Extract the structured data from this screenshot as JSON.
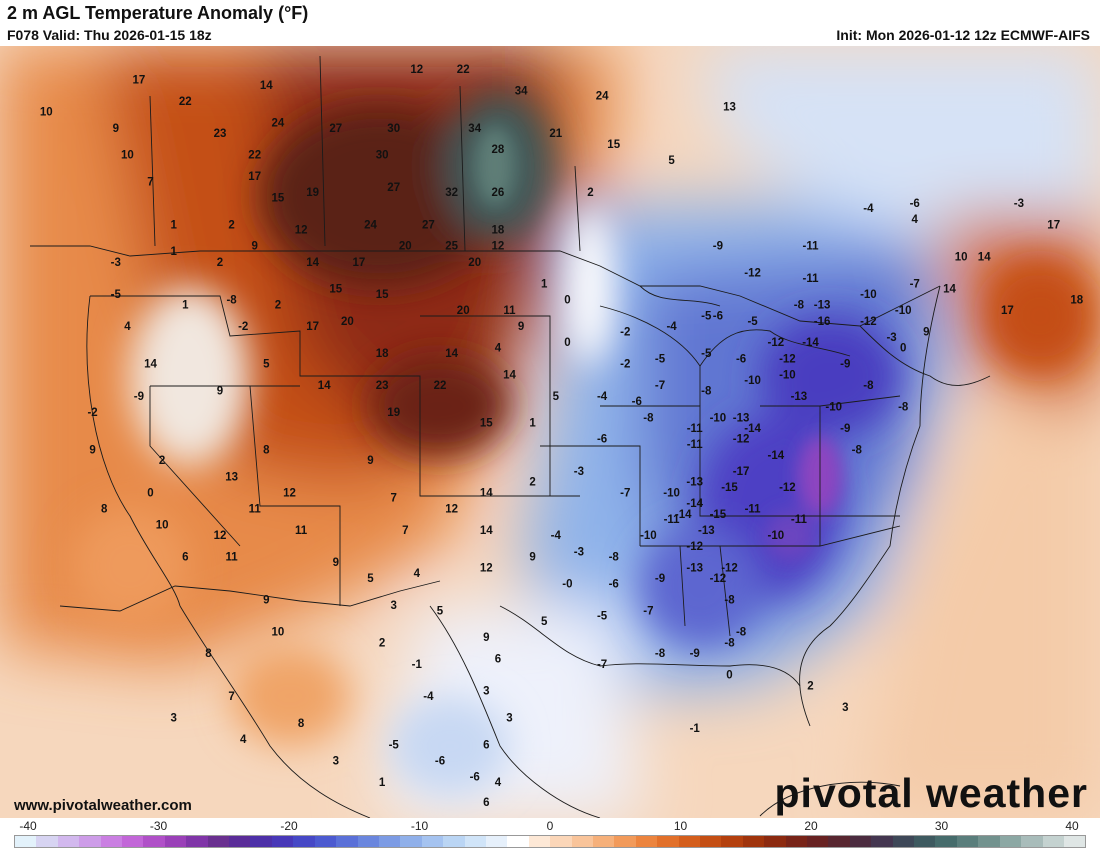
{
  "header": {
    "title": "2 m AGL Temperature Anomaly (°F)",
    "valid": "F078 Valid: Thu 2026-01-15 18z",
    "init": "Init: Mon 2026-01-12 12z ECMWF-AIFS"
  },
  "footer": {
    "site": "www.pivotalweather.com",
    "brand": "pivotal weather"
  },
  "colorbar": {
    "tick_labels": [
      "-40",
      "-30",
      "-20",
      "-10",
      "0",
      "10",
      "20",
      "30",
      "40"
    ],
    "colors": [
      "#e3f2fb",
      "#d7d4f2",
      "#d2b8ee",
      "#cd9ce8",
      "#ca7fe2",
      "#c266d8",
      "#b050c8",
      "#9a40b8",
      "#8035a8",
      "#6a3090",
      "#5a2c98",
      "#4d30a8",
      "#4838b8",
      "#4648c6",
      "#4c5ad0",
      "#5a70d8",
      "#6a86de",
      "#7c9be4",
      "#90b0ea",
      "#a5c3f0",
      "#bad5f4",
      "#d0e4f8",
      "#e6f0fb",
      "#ffffff",
      "#fde8d6",
      "#fbd6b8",
      "#f9c49a",
      "#f6b07a",
      "#f29a5a",
      "#ec843e",
      "#e2702a",
      "#d45e1c",
      "#c44e14",
      "#b4400e",
      "#a0340c",
      "#8c2a10",
      "#782418",
      "#682222",
      "#582630",
      "#4c2c40",
      "#443650",
      "#3e4858",
      "#3e5a60",
      "#466c6c",
      "#5a7e7c",
      "#72928e",
      "#8ca8a4",
      "#a8bcba",
      "#c4d2d0",
      "#dfe6e5"
    ]
  },
  "map_labels": [
    {
      "t": "17",
      "lon": -128,
      "lat": 56.5
    },
    {
      "t": "14",
      "lon": -117,
      "lat": 56
    },
    {
      "t": "12",
      "lon": -104,
      "lat": 57.5
    },
    {
      "t": "22",
      "lon": -100,
      "lat": 57.5
    },
    {
      "t": "34",
      "lon": -95,
      "lat": 55.5
    },
    {
      "t": "24",
      "lon": -88,
      "lat": 55
    },
    {
      "t": "13",
      "lon": -77,
      "lat": 54
    },
    {
      "t": "10",
      "lon": -136,
      "lat": 53.5
    },
    {
      "t": "22",
      "lon": -124,
      "lat": 54.5
    },
    {
      "t": "9",
      "lon": -130,
      "lat": 52
    },
    {
      "t": "23",
      "lon": -121,
      "lat": 51.5
    },
    {
      "t": "24",
      "lon": -116,
      "lat": 52.5
    },
    {
      "t": "27",
      "lon": -111,
      "lat": 52
    },
    {
      "t": "30",
      "lon": -106,
      "lat": 52
    },
    {
      "t": "34",
      "lon": -99,
      "lat": 52
    },
    {
      "t": "21",
      "lon": -92,
      "lat": 51.5
    },
    {
      "t": "15",
      "lon": -87,
      "lat": 50.5
    },
    {
      "t": "5",
      "lon": -82,
      "lat": 49
    },
    {
      "t": "10",
      "lon": -129,
      "lat": 49.5
    },
    {
      "t": "22",
      "lon": -118,
      "lat": 49.5
    },
    {
      "t": "30",
      "lon": -107,
      "lat": 49.5
    },
    {
      "t": "28",
      "lon": -97,
      "lat": 50
    },
    {
      "t": "7",
      "lon": -127,
      "lat": 47
    },
    {
      "t": "17",
      "lon": -118,
      "lat": 47.5
    },
    {
      "t": "15",
      "lon": -116,
      "lat": 45.5
    },
    {
      "t": "19",
      "lon": -113,
      "lat": 46
    },
    {
      "t": "27",
      "lon": -106,
      "lat": 46.5
    },
    {
      "t": "32",
      "lon": -101,
      "lat": 46
    },
    {
      "t": "26",
      "lon": -97,
      "lat": 46
    },
    {
      "t": "2",
      "lon": -89,
      "lat": 46
    },
    {
      "t": "24",
      "lon": -108,
      "lat": 43
    },
    {
      "t": "27",
      "lon": -103,
      "lat": 43
    },
    {
      "t": "18",
      "lon": -97,
      "lat": 42.5
    },
    {
      "t": "12",
      "lon": -114,
      "lat": 42.5
    },
    {
      "t": "2",
      "lon": -120,
      "lat": 43
    },
    {
      "t": "1",
      "lon": -125,
      "lat": 43
    },
    {
      "t": "20",
      "lon": -105,
      "lat": 41
    },
    {
      "t": "25",
      "lon": -101,
      "lat": 41
    },
    {
      "t": "12",
      "lon": -97,
      "lat": 41
    },
    {
      "t": "9",
      "lon": -118,
      "lat": 41
    },
    {
      "t": "14",
      "lon": -113,
      "lat": 39.5
    },
    {
      "t": "17",
      "lon": -109,
      "lat": 39.5
    },
    {
      "t": "20",
      "lon": -99,
      "lat": 39.5
    },
    {
      "t": "2",
      "lon": -121,
      "lat": 39.5
    },
    {
      "t": "1",
      "lon": -125,
      "lat": 40.5
    },
    {
      "t": "-3",
      "lon": -130,
      "lat": 39.5
    },
    {
      "t": "-5",
      "lon": -130,
      "lat": 36.5
    },
    {
      "t": "1",
      "lon": -124,
      "lat": 35.5
    },
    {
      "t": "-8",
      "lon": -120,
      "lat": 36
    },
    {
      "t": "2",
      "lon": -116,
      "lat": 35.5
    },
    {
      "t": "15",
      "lon": -111,
      "lat": 37
    },
    {
      "t": "15",
      "lon": -107,
      "lat": 36.5
    },
    {
      "t": "20",
      "lon": -100,
      "lat": 35
    },
    {
      "t": "11",
      "lon": -96,
      "lat": 35
    },
    {
      "t": "4",
      "lon": -129,
      "lat": 33.5
    },
    {
      "t": "-2",
      "lon": -119,
      "lat": 33.5
    },
    {
      "t": "17",
      "lon": -113,
      "lat": 33.5
    },
    {
      "t": "20",
      "lon": -110,
      "lat": 34
    },
    {
      "t": "9",
      "lon": -95,
      "lat": 33.5
    },
    {
      "t": "0",
      "lon": -91,
      "lat": 36
    },
    {
      "t": "1",
      "lon": -93,
      "lat": 37.5
    },
    {
      "t": "-2",
      "lon": -86,
      "lat": 33
    },
    {
      "t": "-4",
      "lon": -82,
      "lat": 33.5
    },
    {
      "t": "-5",
      "lon": -79,
      "lat": 34.5
    },
    {
      "t": "-5",
      "lon": -75,
      "lat": 34
    },
    {
      "t": "-8",
      "lon": -71,
      "lat": 35.5
    },
    {
      "t": "14",
      "lon": -127,
      "lat": 30
    },
    {
      "t": "5",
      "lon": -117,
      "lat": 30
    },
    {
      "t": "18",
      "lon": -107,
      "lat": 31
    },
    {
      "t": "14",
      "lon": -101,
      "lat": 31
    },
    {
      "t": "4",
      "lon": -97,
      "lat": 31.5
    },
    {
      "t": "0",
      "lon": -91,
      "lat": 32
    },
    {
      "t": "-2",
      "lon": -86,
      "lat": 30
    },
    {
      "t": "-5",
      "lon": -83,
      "lat": 30.5
    },
    {
      "t": "-5",
      "lon": -79,
      "lat": 31
    },
    {
      "t": "-6",
      "lon": -76,
      "lat": 30.5
    },
    {
      "t": "-9",
      "lon": -128,
      "lat": 27
    },
    {
      "t": "9",
      "lon": -121,
      "lat": 27.5
    },
    {
      "t": "14",
      "lon": -112,
      "lat": 28
    },
    {
      "t": "23",
      "lon": -107,
      "lat": 28
    },
    {
      "t": "22",
      "lon": -102,
      "lat": 28
    },
    {
      "t": "14",
      "lon": -96,
      "lat": 29
    },
    {
      "t": "5",
      "lon": -92,
      "lat": 27
    },
    {
      "t": "-4",
      "lon": -88,
      "lat": 27
    },
    {
      "t": "-6",
      "lon": -85,
      "lat": 26.5
    },
    {
      "t": "-7",
      "lon": -83,
      "lat": 28
    },
    {
      "t": "-8",
      "lon": -79,
      "lat": 27.5
    },
    {
      "t": "-2",
      "lon": -132,
      "lat": 25.5
    },
    {
      "t": "19",
      "lon": -106,
      "lat": 25.5
    },
    {
      "t": "15",
      "lon": -98,
      "lat": 24.5
    },
    {
      "t": "1",
      "lon": -94,
      "lat": 24.5
    },
    {
      "t": "-8",
      "lon": -84,
      "lat": 25
    },
    {
      "t": "9",
      "lon": -132,
      "lat": 22
    },
    {
      "t": "2",
      "lon": -126,
      "lat": 21
    },
    {
      "t": "8",
      "lon": -117,
      "lat": 22
    },
    {
      "t": "9",
      "lon": -108,
      "lat": 21
    },
    {
      "t": "-6",
      "lon": -88,
      "lat": 23
    },
    {
      "t": "-11",
      "lon": -80,
      "lat": 24
    },
    {
      "t": "13",
      "lon": -120,
      "lat": 19.5
    },
    {
      "t": "0",
      "lon": -127,
      "lat": 18
    },
    {
      "t": "12",
      "lon": -115,
      "lat": 18
    },
    {
      "t": "7",
      "lon": -106,
      "lat": 17.5
    },
    {
      "t": "14",
      "lon": -98,
      "lat": 18
    },
    {
      "t": "2",
      "lon": -94,
      "lat": 19
    },
    {
      "t": "-3",
      "lon": -90,
      "lat": 20
    },
    {
      "t": "-7",
      "lon": -86,
      "lat": 18
    },
    {
      "t": "-10",
      "lon": -82,
      "lat": 18
    },
    {
      "t": "8",
      "lon": -131,
      "lat": 16.5
    },
    {
      "t": "10",
      "lon": -126,
      "lat": 15
    },
    {
      "t": "12",
      "lon": -121,
      "lat": 14
    },
    {
      "t": "11",
      "lon": -118,
      "lat": 16.5
    },
    {
      "t": "11",
      "lon": -114,
      "lat": 14.5
    },
    {
      "t": "12",
      "lon": -101,
      "lat": 16.5
    },
    {
      "t": "7",
      "lon": -105,
      "lat": 14.5
    },
    {
      "t": "14",
      "lon": -98,
      "lat": 14.5
    },
    {
      "t": "-4",
      "lon": -92,
      "lat": 14
    },
    {
      "t": "-3",
      "lon": -90,
      "lat": 12.5
    },
    {
      "t": "-10",
      "lon": -84,
      "lat": 14
    },
    {
      "t": "6",
      "lon": -124,
      "lat": 12
    },
    {
      "t": "11",
      "lon": -120,
      "lat": 12
    },
    {
      "t": "9",
      "lon": -111,
      "lat": 11.5
    },
    {
      "t": "5",
      "lon": -108,
      "lat": 10
    },
    {
      "t": "4",
      "lon": -104,
      "lat": 10.5
    },
    {
      "t": "12",
      "lon": -98,
      "lat": 11
    },
    {
      "t": "9",
      "lon": -94,
      "lat": 12
    },
    {
      "t": "-8",
      "lon": -87,
      "lat": 12
    },
    {
      "t": "-9",
      "lon": -83,
      "lat": 10
    },
    {
      "t": "9",
      "lon": -117,
      "lat": 8
    },
    {
      "t": "3",
      "lon": -106,
      "lat": 7.5
    },
    {
      "t": "5",
      "lon": -102,
      "lat": 7
    },
    {
      "t": "-0",
      "lon": -91,
      "lat": 9.5
    },
    {
      "t": "-6",
      "lon": -87,
      "lat": 9.5
    },
    {
      "t": "-7",
      "lon": -84,
      "lat": 7
    },
    {
      "t": "5",
      "lon": -93,
      "lat": 6
    },
    {
      "t": "-5",
      "lon": -88,
      "lat": 6.5
    },
    {
      "t": "10",
      "lon": -116,
      "lat": 5
    },
    {
      "t": "2",
      "lon": -107,
      "lat": 4
    },
    {
      "t": "9",
      "lon": -98,
      "lat": 4.5
    },
    {
      "t": "8",
      "lon": -122,
      "lat": 3
    },
    {
      "t": "-1",
      "lon": -104,
      "lat": 2
    },
    {
      "t": "6",
      "lon": -97,
      "lat": 2.5
    },
    {
      "t": "-7",
      "lon": -88,
      "lat": 2
    },
    {
      "t": "-8",
      "lon": -83,
      "lat": 3
    },
    {
      "t": "-8",
      "lon": -77,
      "lat": 4
    },
    {
      "t": "7",
      "lon": -120,
      "lat": -1
    },
    {
      "t": "-4",
      "lon": -103,
      "lat": -1
    },
    {
      "t": "3",
      "lon": -98,
      "lat": -0.5
    },
    {
      "t": "3",
      "lon": -125,
      "lat": -3
    },
    {
      "t": "8",
      "lon": -114,
      "lat": -3.5
    },
    {
      "t": "3",
      "lon": -96,
      "lat": -3
    },
    {
      "t": "4",
      "lon": -119,
      "lat": -5
    },
    {
      "t": "-5",
      "lon": -106,
      "lat": -5.5
    },
    {
      "t": "-6",
      "lon": -102,
      "lat": -7
    },
    {
      "t": "6",
      "lon": -98,
      "lat": -5.5
    },
    {
      "t": "3",
      "lon": -111,
      "lat": -7
    },
    {
      "t": "-6",
      "lon": -99,
      "lat": -8.5
    },
    {
      "t": "4",
      "lon": -97,
      "lat": -9
    },
    {
      "t": "1",
      "lon": -107,
      "lat": -9
    },
    {
      "t": "6",
      "lon": -98,
      "lat": -11
    },
    {
      "t": "-9",
      "lon": -78,
      "lat": 41
    },
    {
      "t": "-11",
      "lon": -70,
      "lat": 41
    },
    {
      "t": "-12",
      "lon": -75,
      "lat": 38.5
    },
    {
      "t": "-11",
      "lon": -70,
      "lat": 38
    },
    {
      "t": "-10",
      "lon": -65,
      "lat": 36.5
    },
    {
      "t": "-13",
      "lon": -69,
      "lat": 35.5
    },
    {
      "t": "-16",
      "lon": -69,
      "lat": 34
    },
    {
      "t": "-12",
      "lon": -65,
      "lat": 34
    },
    {
      "t": "-10",
      "lon": -62,
      "lat": 35
    },
    {
      "t": "-7",
      "lon": -61,
      "lat": 37.5
    },
    {
      "t": "4",
      "lon": -61,
      "lat": 43.5
    },
    {
      "t": "10",
      "lon": -57,
      "lat": 40
    },
    {
      "t": "14",
      "lon": -55,
      "lat": 40
    },
    {
      "t": "17",
      "lon": -49,
      "lat": 43
    },
    {
      "t": "17",
      "lon": -53,
      "lat": 35
    },
    {
      "t": "18",
      "lon": -47,
      "lat": 36
    },
    {
      "t": "14",
      "lon": -58,
      "lat": 37
    },
    {
      "t": "-4",
      "lon": -65,
      "lat": 44.5
    },
    {
      "t": "-6",
      "lon": -61,
      "lat": 45
    },
    {
      "t": "-3",
      "lon": -52,
      "lat": 45
    },
    {
      "t": "-6",
      "lon": -78,
      "lat": 34.5
    },
    {
      "t": "-12",
      "lon": -73,
      "lat": 32
    },
    {
      "t": "-14",
      "lon": -70,
      "lat": 32
    },
    {
      "t": "-12",
      "lon": -72,
      "lat": 30.5
    },
    {
      "t": "-10",
      "lon": -72,
      "lat": 29
    },
    {
      "t": "-9",
      "lon": -67,
      "lat": 30
    },
    {
      "t": "-3",
      "lon": -63,
      "lat": 32.5
    },
    {
      "t": "9",
      "lon": -60,
      "lat": 33
    },
    {
      "t": "0",
      "lon": -62,
      "lat": 31.5
    },
    {
      "t": "-8",
      "lon": -65,
      "lat": 28
    },
    {
      "t": "-13",
      "lon": -71,
      "lat": 27
    },
    {
      "t": "-10",
      "lon": -68,
      "lat": 26
    },
    {
      "t": "-10",
      "lon": -75,
      "lat": 28.5
    },
    {
      "t": "-13",
      "lon": -76,
      "lat": 25
    },
    {
      "t": "-14",
      "lon": -75,
      "lat": 24
    },
    {
      "t": "-12",
      "lon": -76,
      "lat": 23
    },
    {
      "t": "-11",
      "lon": -80,
      "lat": 22.5
    },
    {
      "t": "-9",
      "lon": -67,
      "lat": 24
    },
    {
      "t": "-8",
      "lon": -66,
      "lat": 22
    },
    {
      "t": "-14",
      "lon": -73,
      "lat": 21.5
    },
    {
      "t": "-17",
      "lon": -76,
      "lat": 20
    },
    {
      "t": "-15",
      "lon": -77,
      "lat": 18.5
    },
    {
      "t": "-13",
      "lon": -80,
      "lat": 19
    },
    {
      "t": "-12",
      "lon": -72,
      "lat": 18.5
    },
    {
      "t": "-11",
      "lon": -75,
      "lat": 16.5
    },
    {
      "t": "-11",
      "lon": -71,
      "lat": 15.5
    },
    {
      "t": "-14",
      "lon": -80,
      "lat": 17
    },
    {
      "t": "-15",
      "lon": -78,
      "lat": 16
    },
    {
      "t": "-14",
      "lon": -81,
      "lat": 16
    },
    {
      "t": "-13",
      "lon": -79,
      "lat": 14.5
    },
    {
      "t": "-12",
      "lon": -80,
      "lat": 13
    },
    {
      "t": "-11",
      "lon": -82,
      "lat": 15.5
    },
    {
      "t": "-10",
      "lon": -73,
      "lat": 14
    },
    {
      "t": "-12",
      "lon": -77,
      "lat": 11
    },
    {
      "t": "-13",
      "lon": -80,
      "lat": 11
    },
    {
      "t": "-12",
      "lon": -78,
      "lat": 10
    },
    {
      "t": "-8",
      "lon": -77,
      "lat": 8
    },
    {
      "t": "-8",
      "lon": -76,
      "lat": 5
    },
    {
      "t": "-9",
      "lon": -80,
      "lat": 3
    },
    {
      "t": "0",
      "lon": -77,
      "lat": 1
    },
    {
      "t": "2",
      "lon": -70,
      "lat": 0
    },
    {
      "t": "3",
      "lon": -67,
      "lat": -2
    },
    {
      "t": "-1",
      "lon": -80,
      "lat": -4
    },
    {
      "t": "-8",
      "lon": -62,
      "lat": 26
    },
    {
      "t": "-10",
      "lon": -78,
      "lat": 25
    }
  ]
}
